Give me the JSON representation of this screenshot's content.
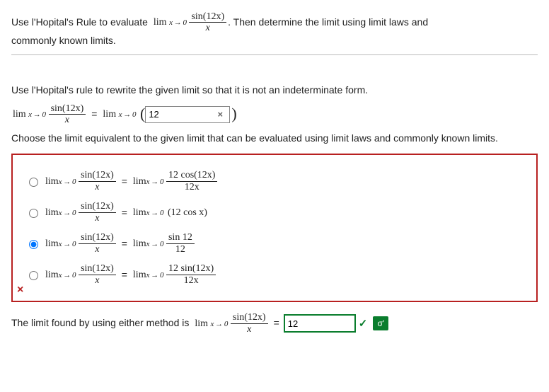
{
  "intro": {
    "part1": "Use l'Hopital's Rule to evaluate",
    "limWord": "lim",
    "limSub": "x → 0",
    "fracNum": "sin(12x)",
    "fracDen": "x",
    "part2": ". Then determine the limit using limit laws and",
    "part3": "commonly known limits."
  },
  "q1": {
    "text": "Use l'Hopital's rule to rewrite the given limit so that it is not an indeterminate form.",
    "limWord": "lim",
    "limSub": "x → 0",
    "fracNum": "sin(12x)",
    "fracDen": "x",
    "eq": "=",
    "answer": "12"
  },
  "q2": {
    "text": "Choose the limit equivalent to the given limit that can be evaluated using limit laws and commonly known limits.",
    "lhs": {
      "limWord": "lim",
      "limSub": "x → 0",
      "num": "sin(12x)",
      "den": "x"
    },
    "options": [
      {
        "rhsType": "frac",
        "rhsLim": "lim",
        "rhsSub": "x → 0",
        "num": "12 cos(12x)",
        "den": "12x"
      },
      {
        "rhsType": "plain",
        "rhsLim": "lim",
        "rhsSub": "x → 0",
        "expr": "(12 cos x)"
      },
      {
        "rhsType": "frac",
        "rhsLim": "lim",
        "rhsSub": "x → 0",
        "num": "sin 12",
        "den": "12"
      },
      {
        "rhsType": "frac",
        "rhsLim": "lim",
        "rhsSub": "x → 0",
        "num": "12 sin(12x)",
        "den": "12x"
      }
    ],
    "selectedIndex": 2,
    "wrong": "×"
  },
  "q3": {
    "text": "The limit found by using either method is",
    "limWord": "lim",
    "limSub": "x → 0",
    "num": "sin(12x)",
    "den": "x",
    "eq": "=",
    "answer": "12",
    "check": "✓",
    "sigma": "σ'"
  }
}
